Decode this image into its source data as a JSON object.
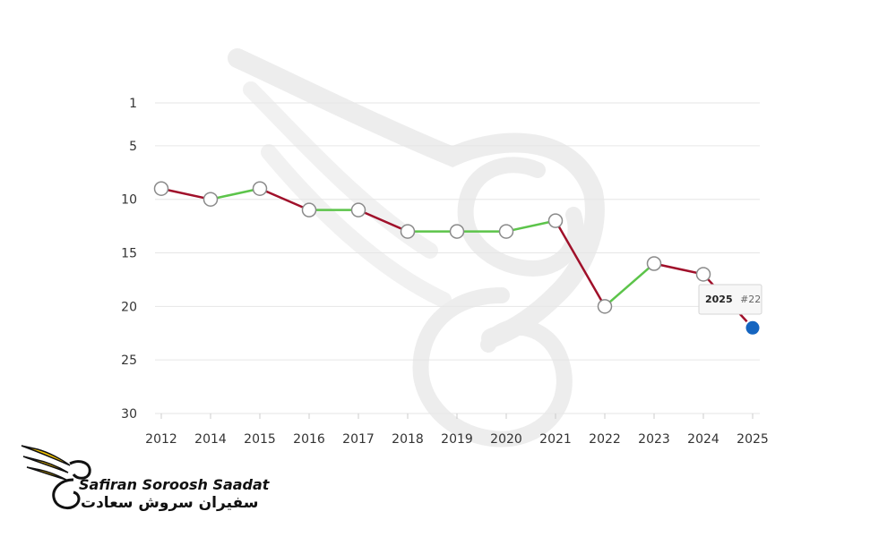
{
  "chart_data": {
    "type": "line",
    "y_reversed": true,
    "ylim": [
      1,
      30
    ],
    "y_ticks": [
      1,
      5,
      10,
      15,
      20,
      25,
      30
    ],
    "x": [
      "2012",
      "2014",
      "2015",
      "2016",
      "2017",
      "2018",
      "2019",
      "2020",
      "2021",
      "2022",
      "2023",
      "2024",
      "2025"
    ],
    "values": [
      9,
      10,
      9,
      11,
      11,
      13,
      13,
      13,
      12,
      20,
      16,
      17,
      22
    ],
    "colors": {
      "up": "#5cc44a",
      "down": "#a0102a",
      "grid": "#e6e6e6"
    },
    "tooltip": {
      "year": "2025",
      "rank": "#22"
    },
    "grid": true
  },
  "watermark": {
    "icon": "winged-swan-emblem-icon"
  },
  "logo": {
    "icon": "winged-swan-logo-icon",
    "brand_en": "Safiran Soroosh Saadat",
    "brand_fa": "سفیران سروش سعادت",
    "colors": {
      "wing": "#f2c200",
      "ink": "#111111"
    }
  }
}
